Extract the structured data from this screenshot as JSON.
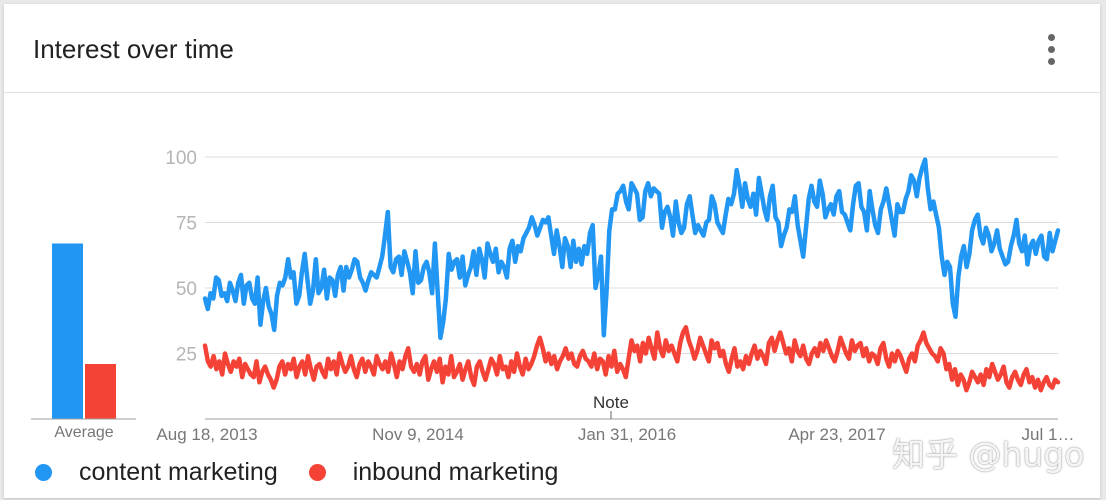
{
  "card": {
    "title": "Interest over time",
    "menu_icon": "more-vert-icon"
  },
  "watermark": "知乎 @hugo",
  "chart_data": [
    {
      "type": "bar",
      "categories": [
        "content marketing",
        "inbound marketing"
      ],
      "values": [
        67,
        21
      ],
      "xlabel": "Average",
      "ylim": [
        0,
        100
      ],
      "colors": [
        "#2196F3",
        "#F44336"
      ]
    },
    {
      "type": "line",
      "title": "",
      "ylim": [
        0,
        100
      ],
      "yticks": [
        25,
        50,
        75,
        100
      ],
      "xtick_labels": [
        "Aug 18, 2013",
        "Nov 9, 2014",
        "Jan 31, 2016",
        "Apr 23, 2017",
        "Jul 1…"
      ],
      "x_start": "Aug 18, 2013",
      "x_end": "Jul 1, 2018",
      "annotation": "Note",
      "annotation_date": "Jan 31, 2016",
      "grid": true,
      "legend_position": "bottom-left",
      "series": [
        {
          "name": "content marketing",
          "color": "#2196F3",
          "values": [
            46,
            42,
            48,
            46,
            54,
            53,
            47,
            48,
            45,
            52,
            49,
            45,
            52,
            55,
            44,
            51,
            52,
            46,
            44,
            54,
            36,
            45,
            50,
            43,
            40,
            34,
            47,
            52,
            51,
            54,
            61,
            54,
            56,
            44,
            47,
            56,
            63,
            53,
            44,
            49,
            61,
            48,
            50,
            57,
            46,
            54,
            53,
            47,
            55,
            58,
            49,
            58,
            54,
            57,
            61,
            60,
            54,
            52,
            49,
            53,
            56,
            55,
            54,
            58,
            62,
            70,
            79,
            58,
            56,
            61,
            62,
            55,
            64,
            60,
            56,
            48,
            64,
            52,
            53,
            58,
            60,
            56,
            48,
            67,
            49,
            31,
            37,
            46,
            63,
            57,
            60,
            61,
            54,
            62,
            51,
            55,
            58,
            64,
            55,
            65,
            61,
            54,
            67,
            63,
            60,
            65,
            56,
            60,
            58,
            54,
            65,
            68,
            60,
            66,
            64,
            69,
            71,
            73,
            77,
            74,
            70,
            73,
            76,
            75,
            77,
            70,
            63,
            72,
            66,
            58,
            69,
            66,
            58,
            68,
            60,
            65,
            59,
            66,
            63,
            71,
            74,
            50,
            55,
            62,
            32,
            49,
            72,
            80,
            80,
            86,
            87,
            89,
            83,
            80,
            90,
            88,
            86,
            76,
            77,
            87,
            90,
            85,
            88,
            87,
            86,
            73,
            79,
            81,
            77,
            70,
            83,
            75,
            71,
            73,
            82,
            85,
            78,
            71,
            74,
            72,
            70,
            75,
            76,
            85,
            82,
            75,
            73,
            71,
            78,
            84,
            82,
            86,
            95,
            89,
            81,
            90,
            84,
            81,
            86,
            78,
            92,
            86,
            80,
            76,
            85,
            89,
            77,
            75,
            66,
            70,
            73,
            80,
            79,
            85,
            74,
            68,
            62,
            73,
            84,
            89,
            83,
            81,
            91,
            86,
            77,
            80,
            82,
            78,
            85,
            87,
            79,
            78,
            75,
            72,
            82,
            89,
            90,
            81,
            79,
            72,
            87,
            80,
            74,
            71,
            80,
            83,
            88,
            82,
            76,
            70,
            82,
            79,
            79,
            84,
            87,
            93,
            91,
            85,
            92,
            96,
            99,
            88,
            80,
            83,
            78,
            73,
            62,
            55,
            60,
            58,
            44,
            39,
            54,
            62,
            66,
            58,
            63,
            72,
            76,
            78,
            70,
            67,
            73,
            70,
            64,
            67,
            72,
            65,
            62,
            59,
            60,
            66,
            70,
            76,
            67,
            64,
            70,
            59,
            66,
            68,
            63,
            68,
            70,
            62,
            61,
            71,
            64,
            68,
            72
          ]
        },
        {
          "name": "inbound marketing",
          "color": "#F44336",
          "values": [
            28,
            22,
            20,
            24,
            19,
            22,
            17,
            25,
            21,
            18,
            22,
            20,
            23,
            16,
            21,
            19,
            17,
            16,
            22,
            14,
            18,
            20,
            17,
            15,
            12,
            15,
            20,
            22,
            17,
            21,
            19,
            23,
            16,
            20,
            22,
            17,
            24,
            19,
            15,
            20,
            21,
            18,
            16,
            23,
            19,
            22,
            17,
            25,
            21,
            18,
            20,
            24,
            19,
            16,
            21,
            23,
            18,
            22,
            20,
            17,
            24,
            21,
            19,
            22,
            18,
            25,
            21,
            16,
            22,
            19,
            24,
            27,
            20,
            18,
            21,
            17,
            22,
            24,
            15,
            19,
            22,
            18,
            23,
            14,
            20,
            17,
            24,
            16,
            18,
            21,
            15,
            19,
            22,
            16,
            13,
            20,
            22,
            18,
            15,
            19,
            23,
            21,
            17,
            24,
            19,
            20,
            16,
            22,
            18,
            25,
            20,
            17,
            23,
            19,
            21,
            24,
            28,
            31,
            27,
            22,
            25,
            21,
            24,
            19,
            22,
            24,
            27,
            23,
            25,
            21,
            20,
            24,
            26,
            23,
            22,
            20,
            25,
            19,
            23,
            22,
            17,
            24,
            20,
            26,
            18,
            21,
            19,
            16,
            23,
            30,
            26,
            28,
            22,
            29,
            25,
            31,
            27,
            23,
            33,
            27,
            24,
            30,
            26,
            28,
            25,
            22,
            29,
            33,
            35,
            30,
            27,
            23,
            26,
            31,
            28,
            25,
            22,
            30,
            27,
            29,
            24,
            26,
            21,
            18,
            23,
            27,
            20,
            22,
            19,
            24,
            21,
            25,
            28,
            23,
            26,
            24,
            21,
            29,
            31,
            26,
            30,
            33,
            29,
            25,
            27,
            22,
            30,
            26,
            24,
            28,
            23,
            21,
            25,
            27,
            24,
            29,
            26,
            30,
            27,
            24,
            22,
            26,
            31,
            28,
            25,
            23,
            30,
            26,
            28,
            29,
            24,
            27,
            22,
            25,
            24,
            21,
            27,
            29,
            23,
            20,
            25,
            22,
            26,
            24,
            21,
            18,
            23,
            25,
            22,
            28,
            30,
            33,
            29,
            27,
            25,
            24,
            22,
            27,
            25,
            19,
            21,
            15,
            19,
            13,
            17,
            15,
            11,
            14,
            18,
            16,
            14,
            17,
            13,
            19,
            16,
            21,
            18,
            15,
            17,
            20,
            14,
            12,
            16,
            18,
            15,
            13,
            17,
            19,
            14,
            16,
            12,
            15,
            11,
            14,
            16,
            13,
            12,
            15,
            14
          ]
        }
      ]
    }
  ]
}
